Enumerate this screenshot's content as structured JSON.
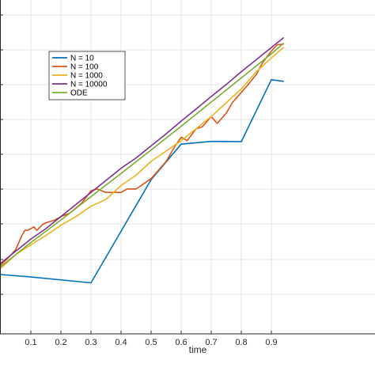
{
  "chart_data": {
    "type": "line",
    "xlabel": "time",
    "ylabel": "",
    "title": "",
    "xlim": [
      0,
      0.94
    ],
    "ylim": [
      0,
      1
    ],
    "xticks": [
      "0.1",
      "0.2",
      "0.3",
      "0.4",
      "0.5",
      "0.6",
      "0.7",
      "0.8",
      "0.9"
    ],
    "grid": true,
    "legend_position": "upper-left",
    "series": [
      {
        "name": "N = 10",
        "color": "#0072BD",
        "x": [
          0,
          0.1,
          0.3,
          0.5,
          0.6,
          0.7,
          0.8,
          0.9,
          0.94
        ],
        "y": [
          0.172,
          0.165,
          0.148,
          0.447,
          0.55,
          0.558,
          0.557,
          0.737,
          0.732
        ]
      },
      {
        "name": "N = 100",
        "color": "#D95319",
        "x": [
          0,
          0.03,
          0.05,
          0.06,
          0.07,
          0.08,
          0.09,
          0.11,
          0.12,
          0.14,
          0.15,
          0.18,
          0.2,
          0.23,
          0.25,
          0.27,
          0.3,
          0.32,
          0.35,
          0.4,
          0.42,
          0.45,
          0.5,
          0.52,
          0.55,
          0.58,
          0.6,
          0.62,
          0.65,
          0.67,
          0.7,
          0.72,
          0.75,
          0.77,
          0.8,
          0.82,
          0.85,
          0.87,
          0.9,
          0.92,
          0.94
        ],
        "y": [
          0.2,
          0.225,
          0.245,
          0.265,
          0.285,
          0.3,
          0.3,
          0.31,
          0.3,
          0.318,
          0.322,
          0.33,
          0.34,
          0.35,
          0.365,
          0.38,
          0.415,
          0.42,
          0.41,
          0.41,
          0.42,
          0.42,
          0.45,
          0.47,
          0.5,
          0.545,
          0.57,
          0.56,
          0.595,
          0.6,
          0.63,
          0.61,
          0.64,
          0.67,
          0.7,
          0.72,
          0.752,
          0.785,
          0.82,
          0.838,
          0.84
        ]
      },
      {
        "name": "N = 1000",
        "color": "#EDB120",
        "x": [
          0,
          0.05,
          0.1,
          0.15,
          0.2,
          0.25,
          0.3,
          0.35,
          0.4,
          0.45,
          0.5,
          0.55,
          0.6,
          0.65,
          0.7,
          0.75,
          0.8,
          0.85,
          0.9,
          0.94
        ],
        "y": [
          0.19,
          0.23,
          0.258,
          0.285,
          0.315,
          0.34,
          0.37,
          0.39,
          0.43,
          0.46,
          0.5,
          0.53,
          0.56,
          0.595,
          0.63,
          0.67,
          0.71,
          0.76,
          0.8,
          0.83
        ]
      },
      {
        "name": "N = 10000",
        "color": "#7E2F8E",
        "x": [
          0,
          0.05,
          0.1,
          0.15,
          0.2,
          0.25,
          0.3,
          0.35,
          0.4,
          0.45,
          0.5,
          0.55,
          0.6,
          0.65,
          0.7,
          0.75,
          0.8,
          0.85,
          0.9,
          0.94
        ],
        "y": [
          0.205,
          0.24,
          0.275,
          0.305,
          0.34,
          0.375,
          0.41,
          0.445,
          0.48,
          0.51,
          0.545,
          0.58,
          0.617,
          0.652,
          0.688,
          0.723,
          0.76,
          0.795,
          0.83,
          0.858
        ]
      },
      {
        "name": "ODE",
        "color": "#77AC30",
        "x": [
          0,
          0.1,
          0.2,
          0.3,
          0.4,
          0.5,
          0.6,
          0.7,
          0.8,
          0.9,
          0.94
        ],
        "y": [
          0.195,
          0.265,
          0.33,
          0.398,
          0.465,
          0.533,
          0.602,
          0.672,
          0.742,
          0.812,
          0.842
        ]
      }
    ]
  }
}
